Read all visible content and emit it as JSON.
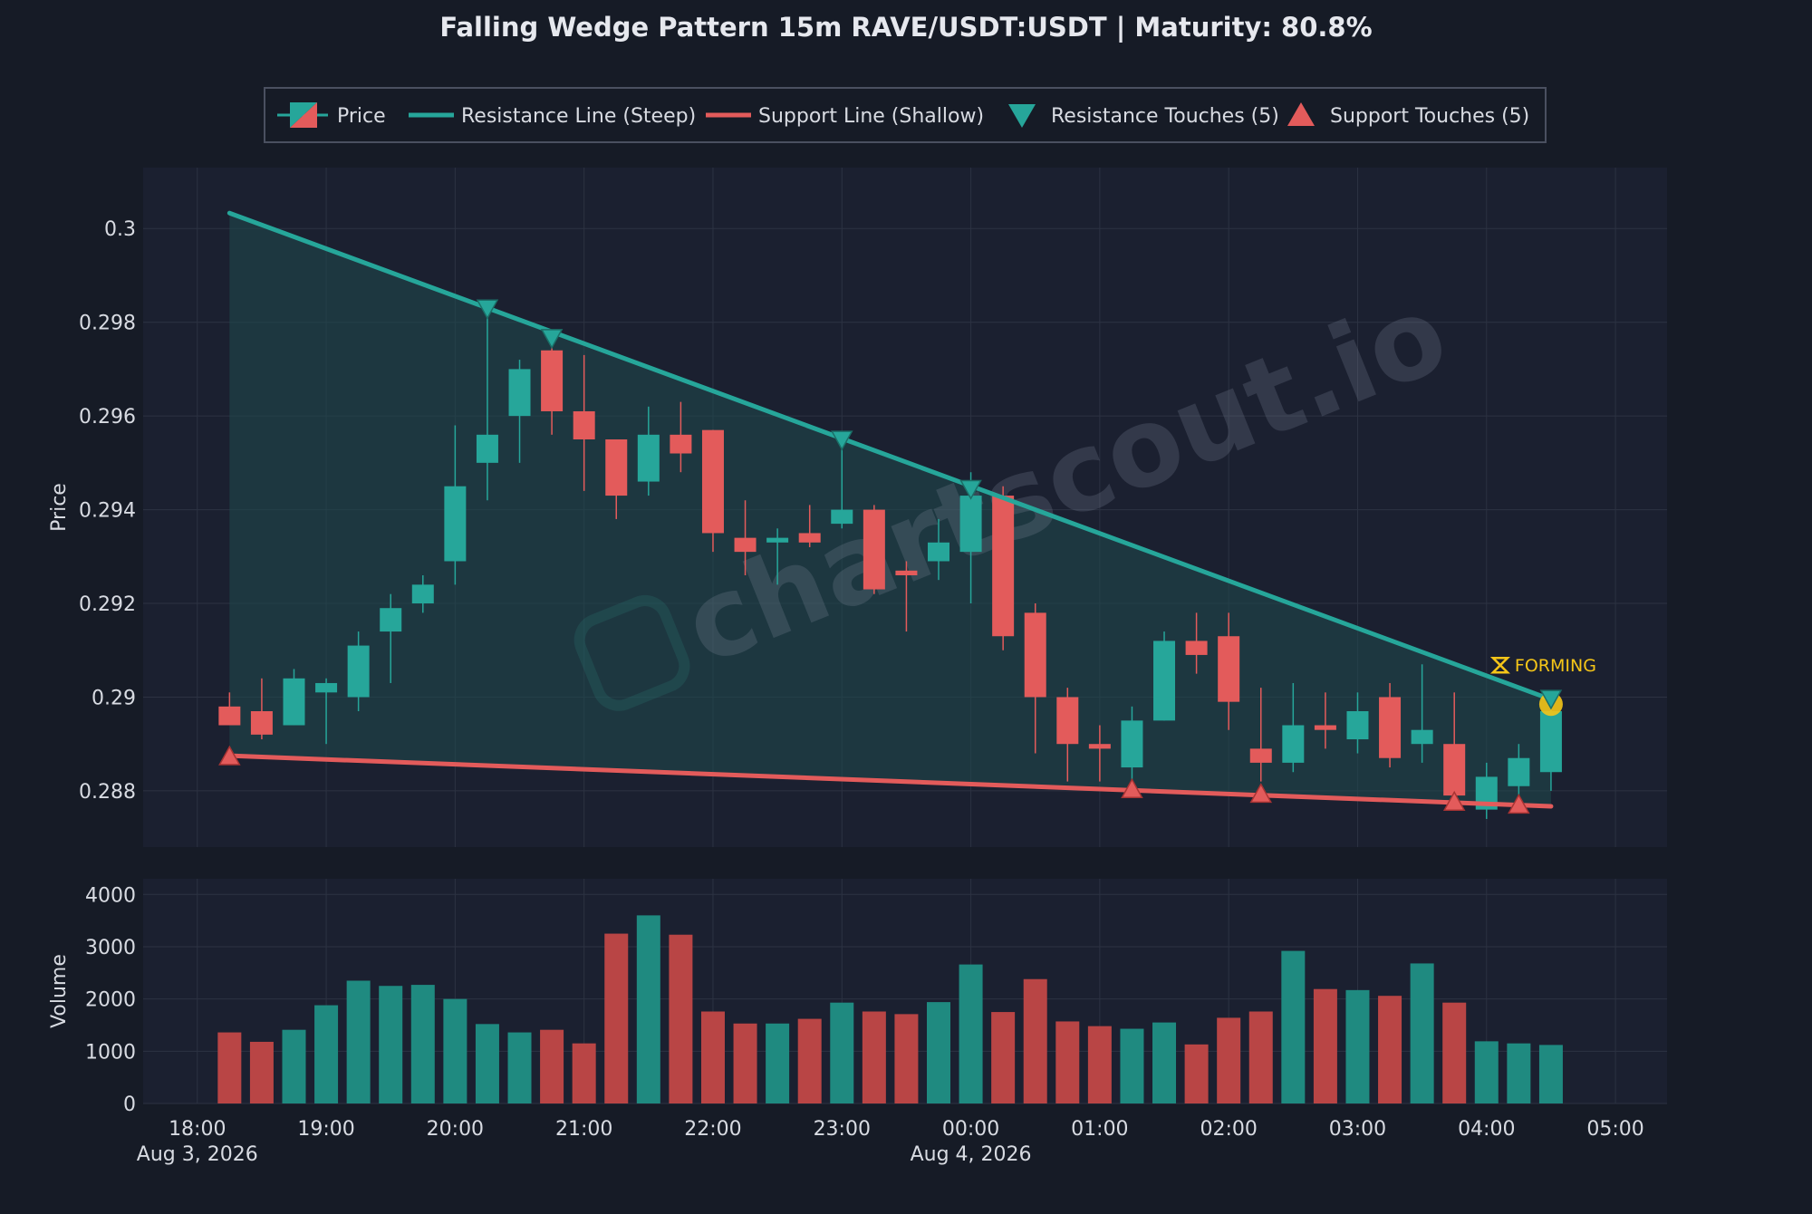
{
  "theme": {
    "background": "#161b26",
    "panel": "#1b2030",
    "grid": "#2c3242",
    "text": "#d8dbe2",
    "bull": "#26a69a",
    "bear": "#e35b5b",
    "bull_volume": "#1f8a80",
    "bear_volume": "#b94545",
    "resistance": "#26a69a",
    "support": "#e35b5b",
    "wedge_fill": "#1f4a4e",
    "forming": "#f5c518"
  },
  "watermark": "chartscout.io",
  "chart_data": {
    "type": "candlestick",
    "title": "Falling Wedge Pattern 15m RAVE/USDT:USDT | Maturity: 80.8%",
    "legend": {
      "placement": "top-center",
      "entries": [
        {
          "key": "price",
          "label": "Price"
        },
        {
          "key": "resistance",
          "label": "Resistance Line (Steep)"
        },
        {
          "key": "support",
          "label": "Support Line (Shallow)"
        },
        {
          "key": "resistance_touches",
          "label": "Resistance Touches (5)"
        },
        {
          "key": "support_touches",
          "label": "Support Touches (5)"
        }
      ]
    },
    "price_axis": {
      "label": "Price",
      "range": [
        0.2868,
        0.3013
      ],
      "ticks": [
        "0.288",
        "0.29",
        "0.292",
        "0.294",
        "0.296",
        "0.298",
        "0.3"
      ],
      "grid": true
    },
    "volume_axis": {
      "label": "Volume",
      "range": [
        0,
        4300
      ],
      "ticks": [
        "0",
        "1000",
        "2000",
        "3000",
        "4000"
      ],
      "grid": true
    },
    "time_axis": {
      "range": [
        17.58,
        29.4
      ],
      "ticks": [
        {
          "t": 18,
          "label": "18:00"
        },
        {
          "t": 19,
          "label": "19:00"
        },
        {
          "t": 20,
          "label": "20:00"
        },
        {
          "t": 21,
          "label": "21:00"
        },
        {
          "t": 22,
          "label": "22:00"
        },
        {
          "t": 23,
          "label": "23:00"
        },
        {
          "t": 24,
          "label": "00:00"
        },
        {
          "t": 25,
          "label": "01:00"
        },
        {
          "t": 26,
          "label": "02:00"
        },
        {
          "t": 27,
          "label": "03:00"
        },
        {
          "t": 28,
          "label": "04:00"
        },
        {
          "t": 29,
          "label": "05:00"
        }
      ],
      "dates": [
        {
          "t": 18,
          "label": "Aug 3, 2026"
        },
        {
          "t": 24,
          "label": "Aug 4, 2026"
        }
      ]
    },
    "candles": [
      {
        "t": 18.25,
        "o": 0.2898,
        "h": 0.2901,
        "l": 0.2894,
        "c": 0.2894,
        "v": 1360
      },
      {
        "t": 18.5,
        "o": 0.2897,
        "h": 0.2904,
        "l": 0.2891,
        "c": 0.2892,
        "v": 1180
      },
      {
        "t": 18.75,
        "o": 0.2894,
        "h": 0.2906,
        "l": 0.2894,
        "c": 0.2904,
        "v": 1410
      },
      {
        "t": 19.0,
        "o": 0.2901,
        "h": 0.2904,
        "l": 0.289,
        "c": 0.2903,
        "v": 1880
      },
      {
        "t": 19.25,
        "o": 0.29,
        "h": 0.2914,
        "l": 0.2897,
        "c": 0.2911,
        "v": 2350
      },
      {
        "t": 19.5,
        "o": 0.2914,
        "h": 0.2922,
        "l": 0.2903,
        "c": 0.2919,
        "v": 2250
      },
      {
        "t": 19.75,
        "o": 0.292,
        "h": 0.2926,
        "l": 0.2918,
        "c": 0.2924,
        "v": 2270
      },
      {
        "t": 20.0,
        "o": 0.2929,
        "h": 0.2958,
        "l": 0.2924,
        "c": 0.2945,
        "v": 2000
      },
      {
        "t": 20.25,
        "o": 0.295,
        "h": 0.2982,
        "l": 0.2942,
        "c": 0.2956,
        "v": 1520
      },
      {
        "t": 20.5,
        "o": 0.296,
        "h": 0.2972,
        "l": 0.295,
        "c": 0.297,
        "v": 1360
      },
      {
        "t": 20.75,
        "o": 0.2974,
        "h": 0.2977,
        "l": 0.2956,
        "c": 0.2961,
        "v": 1410
      },
      {
        "t": 21.0,
        "o": 0.2961,
        "h": 0.2973,
        "l": 0.2944,
        "c": 0.2955,
        "v": 1150
      },
      {
        "t": 21.25,
        "o": 0.2955,
        "h": 0.2955,
        "l": 0.2938,
        "c": 0.2943,
        "v": 3250
      },
      {
        "t": 21.5,
        "o": 0.2946,
        "h": 0.2962,
        "l": 0.2943,
        "c": 0.2956,
        "v": 3600
      },
      {
        "t": 21.75,
        "o": 0.2956,
        "h": 0.2963,
        "l": 0.2948,
        "c": 0.2952,
        "v": 3230
      },
      {
        "t": 22.0,
        "o": 0.2957,
        "h": 0.2957,
        "l": 0.2931,
        "c": 0.2935,
        "v": 1760
      },
      {
        "t": 22.25,
        "o": 0.2934,
        "h": 0.2942,
        "l": 0.2926,
        "c": 0.2931,
        "v": 1530
      },
      {
        "t": 22.5,
        "o": 0.2933,
        "h": 0.2936,
        "l": 0.2924,
        "c": 0.2934,
        "v": 1530
      },
      {
        "t": 22.75,
        "o": 0.2935,
        "h": 0.2941,
        "l": 0.2932,
        "c": 0.2933,
        "v": 1620
      },
      {
        "t": 23.0,
        "o": 0.2937,
        "h": 0.2955,
        "l": 0.2936,
        "c": 0.294,
        "v": 1930
      },
      {
        "t": 23.25,
        "o": 0.294,
        "h": 0.2941,
        "l": 0.2922,
        "c": 0.2923,
        "v": 1760
      },
      {
        "t": 23.5,
        "o": 0.2927,
        "h": 0.2929,
        "l": 0.2914,
        "c": 0.2926,
        "v": 1710
      },
      {
        "t": 23.75,
        "o": 0.2929,
        "h": 0.2938,
        "l": 0.2925,
        "c": 0.2933,
        "v": 1940
      },
      {
        "t": 24.0,
        "o": 0.2931,
        "h": 0.2948,
        "l": 0.292,
        "c": 0.2943,
        "v": 2660
      },
      {
        "t": 24.25,
        "o": 0.2943,
        "h": 0.2945,
        "l": 0.291,
        "c": 0.2913,
        "v": 1750
      },
      {
        "t": 24.5,
        "o": 0.2918,
        "h": 0.292,
        "l": 0.2888,
        "c": 0.29,
        "v": 2380
      },
      {
        "t": 24.75,
        "o": 0.29,
        "h": 0.2902,
        "l": 0.2882,
        "c": 0.289,
        "v": 1570
      },
      {
        "t": 25.0,
        "o": 0.289,
        "h": 0.2894,
        "l": 0.2882,
        "c": 0.2889,
        "v": 1480
      },
      {
        "t": 25.25,
        "o": 0.2885,
        "h": 0.2898,
        "l": 0.2882,
        "c": 0.2895,
        "v": 1430
      },
      {
        "t": 25.5,
        "o": 0.2895,
        "h": 0.2914,
        "l": 0.2895,
        "c": 0.2912,
        "v": 1550
      },
      {
        "t": 25.75,
        "o": 0.2912,
        "h": 0.2918,
        "l": 0.2905,
        "c": 0.2909,
        "v": 1130
      },
      {
        "t": 26.0,
        "o": 0.2913,
        "h": 0.2918,
        "l": 0.2893,
        "c": 0.2899,
        "v": 1640
      },
      {
        "t": 26.25,
        "o": 0.2889,
        "h": 0.2902,
        "l": 0.2882,
        "c": 0.2886,
        "v": 1760
      },
      {
        "t": 26.5,
        "o": 0.2886,
        "h": 0.2903,
        "l": 0.2884,
        "c": 0.2894,
        "v": 2920
      },
      {
        "t": 26.75,
        "o": 0.2894,
        "h": 0.2901,
        "l": 0.2889,
        "c": 0.2893,
        "v": 2190
      },
      {
        "t": 27.0,
        "o": 0.2891,
        "h": 0.2901,
        "l": 0.2888,
        "c": 0.2897,
        "v": 2170
      },
      {
        "t": 27.25,
        "o": 0.29,
        "h": 0.2903,
        "l": 0.2885,
        "c": 0.2887,
        "v": 2060
      },
      {
        "t": 27.5,
        "o": 0.289,
        "h": 0.2907,
        "l": 0.2886,
        "c": 0.2893,
        "v": 2680
      },
      {
        "t": 27.75,
        "o": 0.289,
        "h": 0.2901,
        "l": 0.2878,
        "c": 0.2879,
        "v": 1930
      },
      {
        "t": 28.0,
        "o": 0.2876,
        "h": 0.2886,
        "l": 0.2874,
        "c": 0.2883,
        "v": 1190
      },
      {
        "t": 28.25,
        "o": 0.2881,
        "h": 0.289,
        "l": 0.2879,
        "c": 0.2887,
        "v": 1150
      },
      {
        "t": 28.5,
        "o": 0.2884,
        "h": 0.2898,
        "l": 0.288,
        "c": 0.2897,
        "v": 1120
      }
    ],
    "resistance_line": {
      "start": {
        "t": 18.25,
        "p": 0.30033
      },
      "end": {
        "t": 28.5,
        "p": 0.28995
      }
    },
    "support_line": {
      "start": {
        "t": 18.25,
        "p": 0.28875
      },
      "end": {
        "t": 28.5,
        "p": 0.28767
      }
    },
    "resistance_touches": [
      {
        "t": 20.25,
        "p": 0.29828
      },
      {
        "t": 20.75,
        "p": 0.29765
      },
      {
        "t": 23.0,
        "p": 0.29548
      },
      {
        "t": 24.0,
        "p": 0.29443
      },
      {
        "t": 28.5,
        "p": 0.28995
      }
    ],
    "support_touches": [
      {
        "t": 18.25,
        "p": 0.28875
      },
      {
        "t": 25.25,
        "p": 0.28805
      },
      {
        "t": 26.25,
        "p": 0.28795
      },
      {
        "t": 27.75,
        "p": 0.28778
      },
      {
        "t": 28.25,
        "p": 0.28772
      }
    ],
    "forming_label": "FORMING",
    "forming_point": {
      "t": 28.5,
      "p": 0.28985
    }
  }
}
